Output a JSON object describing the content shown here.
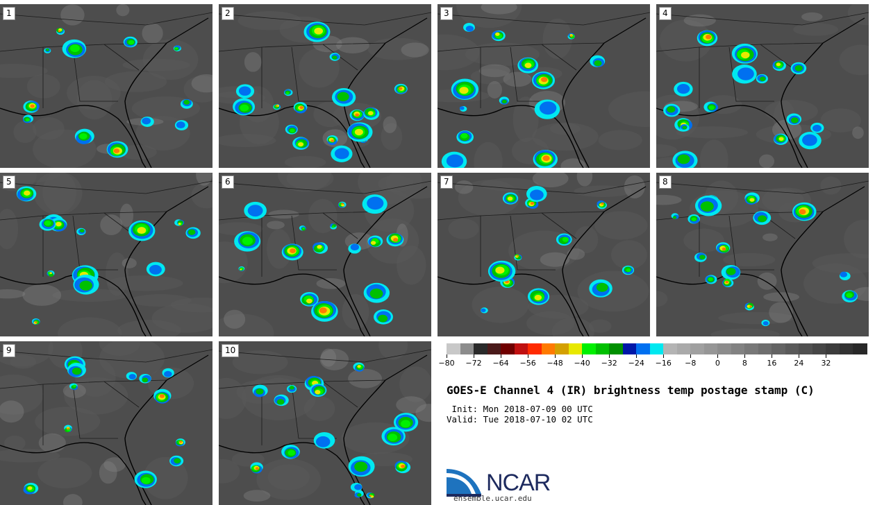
{
  "panels": [
    {
      "label": "1"
    },
    {
      "label": "2"
    },
    {
      "label": "3"
    },
    {
      "label": "4"
    },
    {
      "label": "5"
    },
    {
      "label": "6"
    },
    {
      "label": "7"
    },
    {
      "label": "8"
    },
    {
      "label": "9"
    },
    {
      "label": "10"
    }
  ],
  "colorbar": {
    "colors": [
      "#c8c8c8",
      "#8c8c8c",
      "#2a2a2a",
      "#4a1a1a",
      "#700000",
      "#c01010",
      "#ff2a00",
      "#ff7a00",
      "#d4a000",
      "#e8e800",
      "#00f000",
      "#00c000",
      "#009000",
      "#0018a8",
      "#0070f0",
      "#00e8f0",
      "#b4b4b4",
      "#aaaaaa",
      "#a0a0a0",
      "#969696",
      "#8c8c8c",
      "#828282",
      "#787878",
      "#6e6e6e",
      "#646464",
      "#5a5a5a",
      "#505050",
      "#464646",
      "#3c3c3c",
      "#323232",
      "#282828"
    ],
    "ticks": [
      "−80",
      "−72",
      "−64",
      "−56",
      "−48",
      "−40",
      "−32",
      "−24",
      "−16",
      "−8",
      "0",
      "8",
      "16",
      "24",
      "32"
    ]
  },
  "title": "GOES-E Channel 4 (IR) brightness temp postage stamp (C)",
  "init_text": " Init: Mon 2018-07-09 00 UTC",
  "valid_text": "Valid: Tue 2018-07-10 02 UTC",
  "logo_text": "NCAR",
  "site": "ensemble.ucar.edu"
}
